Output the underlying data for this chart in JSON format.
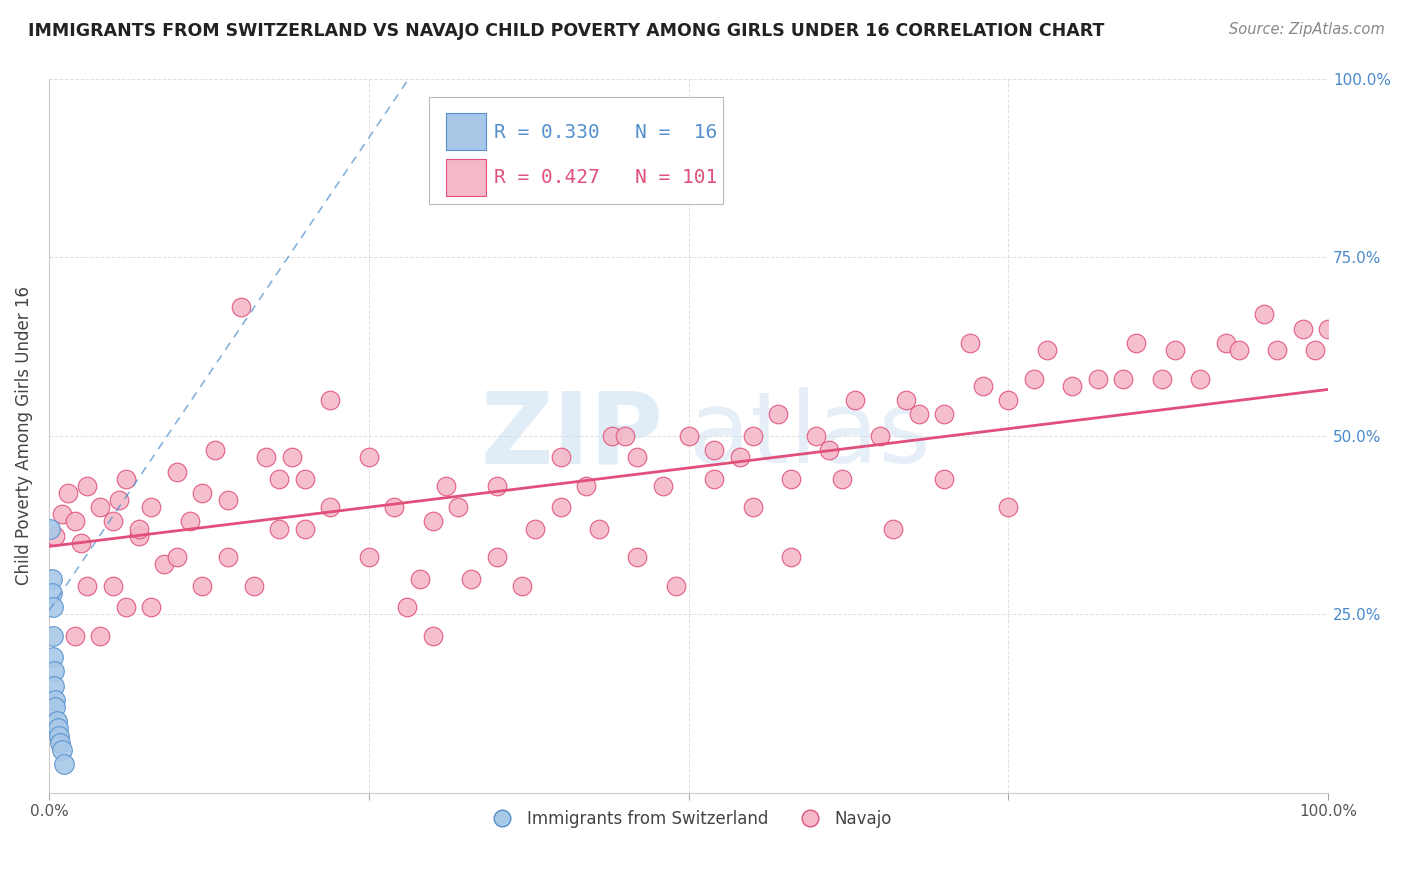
{
  "title": "IMMIGRANTS FROM SWITZERLAND VS NAVAJO CHILD POVERTY AMONG GIRLS UNDER 16 CORRELATION CHART",
  "source": "Source: ZipAtlas.com",
  "ylabel": "Child Poverty Among Girls Under 16",
  "legend_blue_r": "R = 0.330",
  "legend_blue_n": "N =  16",
  "legend_pink_r": "R = 0.427",
  "legend_pink_n": "N = 101",
  "blue_color": "#a8c8e8",
  "pink_color": "#f4b8c8",
  "blue_line_color": "#5590cc",
  "pink_line_color": "#e0507a",
  "watermark_zip": "ZIP",
  "watermark_atlas": "atlas",
  "xlim": [
    0.0,
    1.0
  ],
  "ylim": [
    0.0,
    1.0
  ],
  "background_color": "#ffffff",
  "grid_color": "#cccccc",
  "title_fontsize": 12.5,
  "source_fontsize": 10.5,
  "axis_label_fontsize": 12,
  "tick_fontsize": 11,
  "legend_fontsize": 14,
  "blue_scatter_x": [
    0.001,
    0.002,
    0.002,
    0.003,
    0.003,
    0.003,
    0.004,
    0.004,
    0.005,
    0.005,
    0.006,
    0.007,
    0.008,
    0.009,
    0.01,
    0.012
  ],
  "blue_scatter_y": [
    0.37,
    0.3,
    0.28,
    0.26,
    0.22,
    0.19,
    0.17,
    0.15,
    0.13,
    0.12,
    0.1,
    0.09,
    0.08,
    0.07,
    0.06,
    0.04
  ],
  "blue_line_x": [
    0.0,
    0.3
  ],
  "blue_line_y": [
    0.255,
    1.05
  ],
  "pink_line_x": [
    0.0,
    1.0
  ],
  "pink_line_y": [
    0.345,
    0.565
  ],
  "pink_scatter_x": [
    0.005,
    0.01,
    0.015,
    0.02,
    0.025,
    0.03,
    0.04,
    0.05,
    0.055,
    0.06,
    0.07,
    0.08,
    0.09,
    0.1,
    0.11,
    0.12,
    0.13,
    0.14,
    0.15,
    0.17,
    0.18,
    0.19,
    0.2,
    0.22,
    0.25,
    0.27,
    0.29,
    0.3,
    0.31,
    0.33,
    0.35,
    0.38,
    0.4,
    0.42,
    0.44,
    0.45,
    0.46,
    0.48,
    0.5,
    0.52,
    0.54,
    0.55,
    0.57,
    0.58,
    0.6,
    0.61,
    0.63,
    0.65,
    0.67,
    0.68,
    0.7,
    0.72,
    0.73,
    0.75,
    0.77,
    0.78,
    0.8,
    0.82,
    0.84,
    0.85,
    0.87,
    0.88,
    0.9,
    0.92,
    0.93,
    0.95,
    0.96,
    0.98,
    0.99,
    1.0,
    0.02,
    0.03,
    0.04,
    0.05,
    0.06,
    0.07,
    0.08,
    0.1,
    0.12,
    0.14,
    0.16,
    0.18,
    0.2,
    0.22,
    0.25,
    0.28,
    0.3,
    0.32,
    0.35,
    0.37,
    0.4,
    0.43,
    0.46,
    0.49,
    0.52,
    0.55,
    0.58,
    0.62,
    0.66,
    0.7,
    0.75
  ],
  "pink_scatter_y": [
    0.36,
    0.39,
    0.42,
    0.38,
    0.35,
    0.43,
    0.4,
    0.38,
    0.41,
    0.44,
    0.36,
    0.4,
    0.32,
    0.45,
    0.38,
    0.42,
    0.48,
    0.41,
    0.68,
    0.47,
    0.44,
    0.47,
    0.44,
    0.55,
    0.47,
    0.4,
    0.3,
    0.38,
    0.43,
    0.3,
    0.43,
    0.37,
    0.47,
    0.43,
    0.5,
    0.5,
    0.47,
    0.43,
    0.5,
    0.48,
    0.47,
    0.5,
    0.53,
    0.44,
    0.5,
    0.48,
    0.55,
    0.5,
    0.55,
    0.53,
    0.53,
    0.63,
    0.57,
    0.55,
    0.58,
    0.62,
    0.57,
    0.58,
    0.58,
    0.63,
    0.58,
    0.62,
    0.58,
    0.63,
    0.62,
    0.67,
    0.62,
    0.65,
    0.62,
    0.65,
    0.22,
    0.29,
    0.22,
    0.29,
    0.26,
    0.37,
    0.26,
    0.33,
    0.29,
    0.33,
    0.29,
    0.37,
    0.37,
    0.4,
    0.33,
    0.26,
    0.22,
    0.4,
    0.33,
    0.29,
    0.4,
    0.37,
    0.33,
    0.29,
    0.44,
    0.4,
    0.33,
    0.44,
    0.37,
    0.44,
    0.4
  ]
}
